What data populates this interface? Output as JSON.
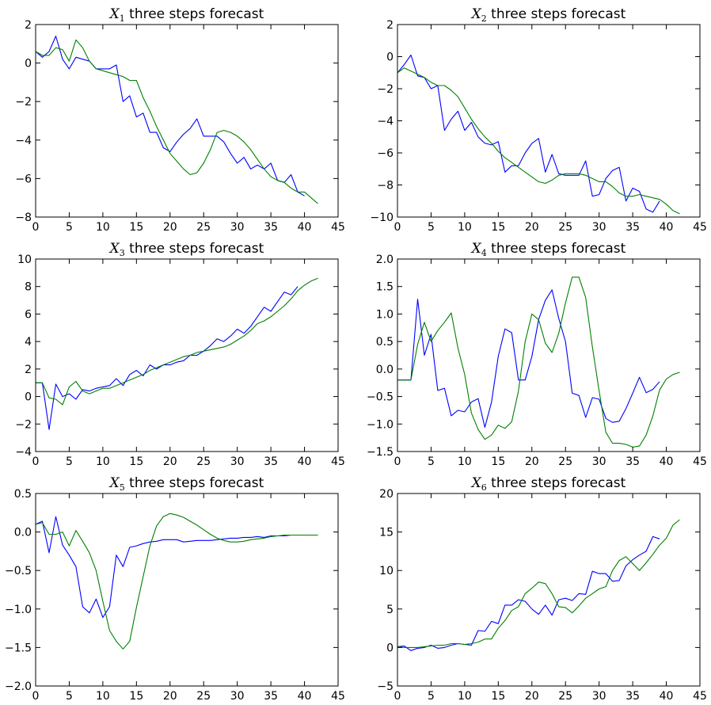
{
  "figure": {
    "background": "#ffffff",
    "series_colors": [
      "#0000ff",
      "#008000"
    ]
  },
  "chart_data": [
    {
      "type": "line",
      "title_var": "X",
      "title_sub": "1",
      "title_text": " three steps forecast",
      "xlim": [
        0,
        45
      ],
      "ylim": [
        -8,
        2
      ],
      "xticks": [
        0,
        5,
        10,
        15,
        20,
        25,
        30,
        35,
        40,
        45
      ],
      "yticks": [
        -8,
        -6,
        -4,
        -2,
        0,
        2
      ],
      "series": [
        {
          "color": "#0000ff",
          "x_start": 0,
          "values": [
            0.6,
            0.3,
            0.6,
            1.4,
            0.2,
            -0.3,
            0.3,
            0.2,
            0.1,
            -0.3,
            -0.3,
            -0.3,
            -0.1,
            -2.0,
            -1.7,
            -2.8,
            -2.6,
            -3.6,
            -3.6,
            -4.4,
            -4.6,
            -4.1,
            -3.7,
            -3.4,
            -2.9,
            -3.8,
            -3.8,
            -3.8,
            -4.1,
            -4.7,
            -5.2,
            -4.9,
            -5.5,
            -5.3,
            -5.5,
            -5.2,
            -6.1,
            -6.2,
            -5.8,
            -6.7,
            -6.9
          ]
        },
        {
          "color": "#008000",
          "x_start": 0,
          "values": [
            0.6,
            0.4,
            0.4,
            0.8,
            0.7,
            0.1,
            1.2,
            0.8,
            0.1,
            -0.3,
            -0.4,
            -0.5,
            -0.6,
            -0.7,
            -0.9,
            -0.9,
            -1.8,
            -2.5,
            -3.3,
            -4.0,
            -4.7,
            -5.1,
            -5.5,
            -5.8,
            -5.7,
            -5.2,
            -4.5,
            -3.6,
            -3.5,
            -3.6,
            -3.8,
            -4.1,
            -4.5,
            -5.0,
            -5.5,
            -5.9,
            -6.1,
            -6.2,
            -6.5,
            -6.7,
            -6.7,
            -7.0,
            -7.3
          ]
        }
      ]
    },
    {
      "type": "line",
      "title_var": "X",
      "title_sub": "2",
      "title_text": " three steps forecast",
      "xlim": [
        0,
        45
      ],
      "ylim": [
        -10,
        2
      ],
      "xticks": [
        0,
        5,
        10,
        15,
        20,
        25,
        30,
        35,
        40,
        45
      ],
      "yticks": [
        -10,
        -8,
        -6,
        -4,
        -2,
        0,
        2
      ],
      "series": [
        {
          "color": "#0000ff",
          "x_start": 0,
          "values": [
            -1.0,
            -0.5,
            0.1,
            -1.2,
            -1.3,
            -2.0,
            -1.8,
            -4.6,
            -3.9,
            -3.4,
            -4.6,
            -4.1,
            -5.0,
            -5.4,
            -5.5,
            -5.3,
            -7.2,
            -6.8,
            -6.8,
            -6.0,
            -5.4,
            -5.1,
            -7.2,
            -6.1,
            -7.3,
            -7.4,
            -7.4,
            -7.4,
            -6.5,
            -8.7,
            -8.6,
            -7.6,
            -7.1,
            -6.9,
            -9.0,
            -8.2,
            -8.4,
            -9.5,
            -9.7,
            -9.0
          ]
        },
        {
          "color": "#008000",
          "x_start": 0,
          "values": [
            -1.0,
            -0.7,
            -0.9,
            -1.1,
            -1.3,
            -1.6,
            -1.8,
            -1.8,
            -2.1,
            -2.5,
            -3.2,
            -3.9,
            -4.5,
            -5.0,
            -5.4,
            -5.9,
            -6.3,
            -6.6,
            -6.9,
            -7.2,
            -7.5,
            -7.8,
            -7.9,
            -7.7,
            -7.4,
            -7.3,
            -7.3,
            -7.3,
            -7.4,
            -7.6,
            -7.8,
            -7.8,
            -8.1,
            -8.5,
            -8.7,
            -8.7,
            -8.6,
            -8.7,
            -8.8,
            -8.9,
            -9.2,
            -9.6,
            -9.8
          ]
        }
      ]
    },
    {
      "type": "line",
      "title_var": "X",
      "title_sub": "3",
      "title_text": " three steps forecast",
      "xlim": [
        0,
        45
      ],
      "ylim": [
        -4,
        10
      ],
      "xticks": [
        0,
        5,
        10,
        15,
        20,
        25,
        30,
        35,
        40,
        45
      ],
      "yticks": [
        -4,
        -2,
        0,
        2,
        4,
        6,
        8,
        10
      ],
      "series": [
        {
          "color": "#0000ff",
          "x_start": 0,
          "values": [
            1.0,
            1.0,
            -2.4,
            0.9,
            0.0,
            0.2,
            -0.2,
            0.5,
            0.4,
            0.6,
            0.7,
            0.8,
            1.3,
            0.8,
            1.6,
            1.9,
            1.5,
            2.3,
            2.0,
            2.3,
            2.3,
            2.5,
            2.6,
            3.0,
            3.0,
            3.3,
            3.7,
            4.2,
            4.0,
            4.4,
            4.9,
            4.6,
            5.1,
            5.8,
            6.5,
            6.2,
            6.9,
            7.6,
            7.4,
            8.0
          ]
        },
        {
          "color": "#008000",
          "x_start": 0,
          "values": [
            1.0,
            1.0,
            -0.1,
            -0.2,
            -0.6,
            0.7,
            1.1,
            0.4,
            0.2,
            0.4,
            0.6,
            0.6,
            0.8,
            1.0,
            1.2,
            1.4,
            1.6,
            1.9,
            2.1,
            2.3,
            2.5,
            2.7,
            2.9,
            3.0,
            3.2,
            3.3,
            3.4,
            3.5,
            3.6,
            3.8,
            4.1,
            4.4,
            4.8,
            5.3,
            5.5,
            5.8,
            6.2,
            6.6,
            7.1,
            7.7,
            8.1,
            8.4,
            8.6
          ]
        }
      ]
    },
    {
      "type": "line",
      "title_var": "X",
      "title_sub": "4",
      "title_text": " three steps forecast",
      "xlim": [
        0,
        45
      ],
      "ylim": [
        -1.5,
        2.0
      ],
      "xticks": [
        0,
        5,
        10,
        15,
        20,
        25,
        30,
        35,
        40,
        45
      ],
      "yticks": [
        -1.5,
        -1.0,
        -0.5,
        0.0,
        0.5,
        1.0,
        1.5,
        2.0
      ],
      "yfmt": 1,
      "series": [
        {
          "color": "#0000ff",
          "x_start": 0,
          "values": [
            -0.2,
            -0.2,
            -0.2,
            1.27,
            0.25,
            0.63,
            -0.39,
            -0.35,
            -0.85,
            -0.75,
            -0.78,
            -0.6,
            -0.54,
            -1.06,
            -0.6,
            0.23,
            0.73,
            0.66,
            -0.2,
            -0.2,
            0.23,
            0.9,
            1.25,
            1.44,
            0.92,
            0.5,
            -0.44,
            -0.48,
            -0.88,
            -0.52,
            -0.55,
            -0.9,
            -0.97,
            -0.95,
            -0.72,
            -0.44,
            -0.15,
            -0.43,
            -0.37,
            -0.23
          ]
        },
        {
          "color": "#008000",
          "x_start": 0,
          "values": [
            -0.2,
            -0.2,
            -0.2,
            0.45,
            0.85,
            0.5,
            0.7,
            0.85,
            1.02,
            0.38,
            -0.1,
            -0.8,
            -1.1,
            -1.28,
            -1.2,
            -1.02,
            -1.08,
            -0.96,
            -0.4,
            0.5,
            1.0,
            0.9,
            0.47,
            0.3,
            0.65,
            1.2,
            1.67,
            1.67,
            1.3,
            0.4,
            -0.4,
            -1.15,
            -1.35,
            -1.35,
            -1.37,
            -1.42,
            -1.4,
            -1.2,
            -0.85,
            -0.38,
            -0.18,
            -0.1,
            -0.06
          ]
        }
      ]
    },
    {
      "type": "line",
      "title_var": "X",
      "title_sub": "5",
      "title_text": " three steps forecast",
      "xlim": [
        0,
        45
      ],
      "ylim": [
        -2.0,
        0.5
      ],
      "xticks": [
        0,
        5,
        10,
        15,
        20,
        25,
        30,
        35,
        40,
        45
      ],
      "yticks": [
        -2.0,
        -1.5,
        -1.0,
        -0.5,
        0.0,
        0.5
      ],
      "yfmt": 1,
      "series": [
        {
          "color": "#0000ff",
          "x_start": 0,
          "values": [
            0.1,
            0.14,
            -0.27,
            0.2,
            -0.17,
            -0.3,
            -0.45,
            -0.97,
            -1.05,
            -0.87,
            -1.11,
            -0.97,
            -0.3,
            -0.45,
            -0.2,
            -0.18,
            -0.15,
            -0.13,
            -0.12,
            -0.1,
            -0.1,
            -0.1,
            -0.13,
            -0.12,
            -0.11,
            -0.11,
            -0.11,
            -0.1,
            -0.09,
            -0.08,
            -0.08,
            -0.07,
            -0.07,
            -0.06,
            -0.07,
            -0.05,
            -0.05,
            -0.05,
            -0.04,
            -0.04
          ]
        },
        {
          "color": "#008000",
          "x_start": 0,
          "values": [
            0.1,
            0.12,
            -0.03,
            -0.03,
            0.0,
            -0.18,
            0.02,
            -0.12,
            -0.27,
            -0.5,
            -0.9,
            -1.28,
            -1.42,
            -1.52,
            -1.42,
            -0.98,
            -0.58,
            -0.18,
            0.08,
            0.2,
            0.24,
            0.22,
            0.19,
            0.14,
            0.09,
            0.03,
            -0.03,
            -0.08,
            -0.11,
            -0.13,
            -0.13,
            -0.12,
            -0.1,
            -0.09,
            -0.08,
            -0.06,
            -0.05,
            -0.04,
            -0.04,
            -0.04,
            -0.04,
            -0.04,
            -0.04
          ]
        }
      ]
    },
    {
      "type": "line",
      "title_var": "X",
      "title_sub": "6",
      "title_text": " three steps forecast",
      "xlim": [
        0,
        45
      ],
      "ylim": [
        -5,
        20
      ],
      "xticks": [
        0,
        5,
        10,
        15,
        20,
        25,
        30,
        35,
        40,
        45
      ],
      "yticks": [
        -5,
        0,
        5,
        10,
        15,
        20
      ],
      "series": [
        {
          "color": "#0000ff",
          "x_start": 0,
          "values": [
            0.1,
            0.2,
            -0.4,
            -0.1,
            0.0,
            0.3,
            -0.1,
            0.0,
            0.3,
            0.5,
            0.4,
            0.3,
            2.2,
            2.1,
            3.4,
            3.1,
            5.5,
            5.5,
            6.2,
            6.0,
            5.0,
            4.3,
            5.5,
            4.2,
            6.2,
            6.4,
            6.1,
            7.0,
            6.9,
            9.9,
            9.6,
            9.6,
            8.6,
            8.7,
            10.6,
            11.4,
            12.0,
            12.5,
            14.4,
            14.1
          ]
        },
        {
          "color": "#008000",
          "x_start": 0,
          "values": [
            0.1,
            0.0,
            0.0,
            0.0,
            0.1,
            0.2,
            0.3,
            0.3,
            0.5,
            0.5,
            0.4,
            0.5,
            0.7,
            1.1,
            1.1,
            2.5,
            3.5,
            4.8,
            5.3,
            7.0,
            7.7,
            8.5,
            8.3,
            7.0,
            5.3,
            5.2,
            4.5,
            5.4,
            6.4,
            7.0,
            7.6,
            7.9,
            10.0,
            11.3,
            11.8,
            10.9,
            10.0,
            11.0,
            12.1,
            13.3,
            14.2,
            15.9,
            16.6
          ]
        }
      ]
    }
  ]
}
